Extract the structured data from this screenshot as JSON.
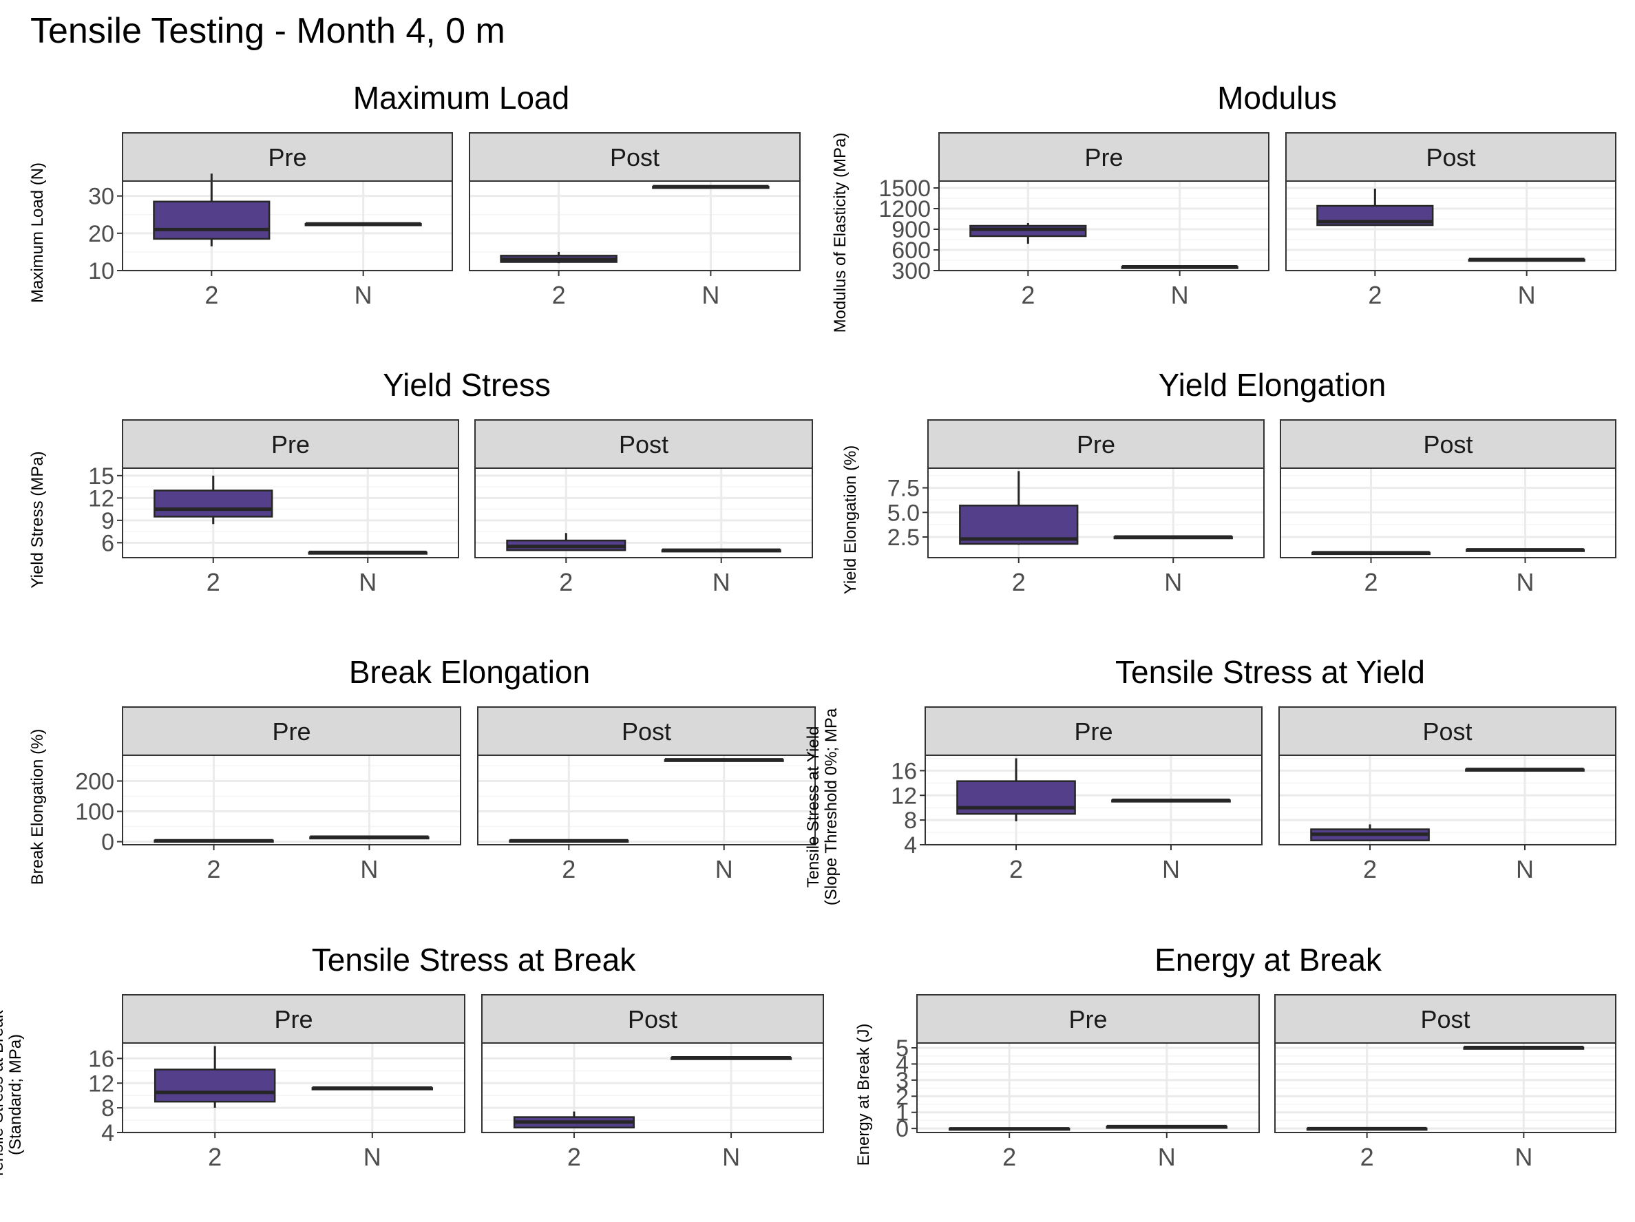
{
  "title": "Tensile Testing - Month 4, 0 m",
  "colors": {
    "box_fill": "#533f8a",
    "box_stroke": "#262626",
    "strip_fill": "#d9d9d9",
    "panel_border": "#333333",
    "grid_major": "#ebebeb",
    "grid_minor": "#f5f5f5"
  },
  "chart_data": [
    {
      "type": "boxplot",
      "title": "Maximum Load",
      "ylabel": [
        "Maximum Load (N)"
      ],
      "ylim": [
        10,
        34
      ],
      "yticks": [
        10,
        20,
        30
      ],
      "ytick_labels": [
        "10",
        "20",
        "30"
      ],
      "categories": [
        "2",
        "N"
      ],
      "facets": [
        {
          "name": "Pre",
          "boxes": [
            {
              "category": "2",
              "min": 16.5,
              "q1": 18.5,
              "median": 21,
              "q3": 28.5,
              "max": 36
            },
            {
              "category": "N",
              "min": 22.5,
              "q1": 22.5,
              "median": 22.5,
              "q3": 22.5,
              "max": 22.5
            }
          ]
        },
        {
          "name": "Post",
          "boxes": [
            {
              "category": "2",
              "min": 12,
              "q1": 12.3,
              "median": 13,
              "q3": 14,
              "max": 15
            },
            {
              "category": "N",
              "min": 32.5,
              "q1": 32.5,
              "median": 32.5,
              "q3": 32.5,
              "max": 32.5
            }
          ]
        }
      ]
    },
    {
      "type": "boxplot",
      "title": "Modulus",
      "ylabel": [
        "Modulus of Elasticity (MPa)"
      ],
      "ylim": [
        300,
        1600
      ],
      "yticks": [
        300,
        600,
        900,
        1200,
        1500
      ],
      "ytick_labels": [
        "300",
        "600",
        "900",
        "1200",
        "1500"
      ],
      "categories": [
        "2",
        "N"
      ],
      "facets": [
        {
          "name": "Pre",
          "boxes": [
            {
              "category": "2",
              "min": 690,
              "q1": 800,
              "median": 900,
              "q3": 950,
              "max": 990
            },
            {
              "category": "N",
              "min": 355,
              "q1": 355,
              "median": 355,
              "q3": 355,
              "max": 355
            }
          ]
        },
        {
          "name": "Post",
          "boxes": [
            {
              "category": "2",
              "min": 960,
              "q1": 960,
              "median": 1010,
              "q3": 1240,
              "max": 1490
            },
            {
              "category": "N",
              "min": 460,
              "q1": 460,
              "median": 460,
              "q3": 460,
              "max": 460
            }
          ]
        }
      ]
    },
    {
      "type": "boxplot",
      "title": "Yield Stress",
      "ylabel": [
        "Yield Stress (MPa)"
      ],
      "ylim": [
        4,
        16
      ],
      "yticks": [
        6,
        9,
        12,
        15
      ],
      "ytick_labels": [
        "6",
        "9",
        "12",
        "15"
      ],
      "categories": [
        "2",
        "N"
      ],
      "facets": [
        {
          "name": "Pre",
          "boxes": [
            {
              "category": "2",
              "min": 8.5,
              "q1": 9.5,
              "median": 10.5,
              "q3": 13,
              "max": 15
            },
            {
              "category": "N",
              "min": 4.7,
              "q1": 4.7,
              "median": 4.7,
              "q3": 4.7,
              "max": 4.7
            }
          ]
        },
        {
          "name": "Post",
          "boxes": [
            {
              "category": "2",
              "min": 5,
              "q1": 5,
              "median": 5.5,
              "q3": 6.3,
              "max": 7.3
            },
            {
              "category": "N",
              "min": 5,
              "q1": 5,
              "median": 5,
              "q3": 5,
              "max": 5
            }
          ]
        }
      ]
    },
    {
      "type": "boxplot",
      "title": "Yield Elongation",
      "ylabel": [
        "Yield Elongation (%)"
      ],
      "ylim": [
        0.4,
        9.5
      ],
      "yticks": [
        2.5,
        5.0,
        7.5
      ],
      "ytick_labels": [
        "2.5",
        "5.0",
        "7.5"
      ],
      "categories": [
        "2",
        "N"
      ],
      "facets": [
        {
          "name": "Pre",
          "boxes": [
            {
              "category": "2",
              "min": 1.7,
              "q1": 1.8,
              "median": 2.3,
              "q3": 5.7,
              "max": 9.2
            },
            {
              "category": "N",
              "min": 2.5,
              "q1": 2.5,
              "median": 2.5,
              "q3": 2.5,
              "max": 2.5
            }
          ]
        },
        {
          "name": "Post",
          "boxes": [
            {
              "category": "2",
              "min": 0.9,
              "q1": 0.9,
              "median": 0.9,
              "q3": 0.9,
              "max": 0.9
            },
            {
              "category": "N",
              "min": 1.2,
              "q1": 1.2,
              "median": 1.2,
              "q3": 1.2,
              "max": 1.2
            }
          ]
        }
      ]
    },
    {
      "type": "boxplot",
      "title": "Break Elongation",
      "ylabel": [
        "Break Elongation (%)"
      ],
      "ylim": [
        -10,
        285
      ],
      "yticks": [
        0,
        100,
        200
      ],
      "ytick_labels": [
        "0",
        "100",
        "200"
      ],
      "categories": [
        "2",
        "N"
      ],
      "facets": [
        {
          "name": "Pre",
          "boxes": [
            {
              "category": "2",
              "min": 2,
              "q1": 2,
              "median": 3,
              "q3": 4,
              "max": 5
            },
            {
              "category": "N",
              "min": 15,
              "q1": 15,
              "median": 15,
              "q3": 15,
              "max": 15
            }
          ]
        },
        {
          "name": "Post",
          "boxes": [
            {
              "category": "2",
              "min": 2,
              "q1": 2,
              "median": 3,
              "q3": 4,
              "max": 4
            },
            {
              "category": "N",
              "min": 270,
              "q1": 270,
              "median": 270,
              "q3": 270,
              "max": 270
            }
          ]
        }
      ]
    },
    {
      "type": "boxplot",
      "title": "Tensile Stress at Yield",
      "ylabel": [
        "Tensile Stress at Yield",
        "(Slope Threshold 0%; MPa"
      ],
      "ylim": [
        4,
        18.5
      ],
      "yticks": [
        4,
        8,
        12,
        16
      ],
      "ytick_labels": [
        "4",
        "8",
        "12",
        "16"
      ],
      "categories": [
        "2",
        "N"
      ],
      "facets": [
        {
          "name": "Pre",
          "boxes": [
            {
              "category": "2",
              "min": 7.8,
              "q1": 9,
              "median": 10,
              "q3": 14.3,
              "max": 18
            },
            {
              "category": "N",
              "min": 11.2,
              "q1": 11.2,
              "median": 11.2,
              "q3": 11.2,
              "max": 11.2
            }
          ]
        },
        {
          "name": "Post",
          "boxes": [
            {
              "category": "2",
              "min": 4.7,
              "q1": 4.7,
              "median": 5.7,
              "q3": 6.5,
              "max": 7.3
            },
            {
              "category": "N",
              "min": 16.2,
              "q1": 16.2,
              "median": 16.2,
              "q3": 16.2,
              "max": 16.2
            }
          ]
        }
      ]
    },
    {
      "type": "boxplot",
      "title": "Tensile Stress at Break",
      "ylabel": [
        "Tensile Stress at Break",
        "(Standard; MPa)"
      ],
      "ylim": [
        4,
        18.5
      ],
      "yticks": [
        4,
        8,
        12,
        16
      ],
      "ytick_labels": [
        "4",
        "8",
        "12",
        "16"
      ],
      "categories": [
        "2",
        "N"
      ],
      "facets": [
        {
          "name": "Pre",
          "boxes": [
            {
              "category": "2",
              "min": 8,
              "q1": 9,
              "median": 10.5,
              "q3": 14.2,
              "max": 18
            },
            {
              "category": "N",
              "min": 11.2,
              "q1": 11.2,
              "median": 11.2,
              "q3": 11.2,
              "max": 11.2
            }
          ]
        },
        {
          "name": "Post",
          "boxes": [
            {
              "category": "2",
              "min": 4.8,
              "q1": 4.8,
              "median": 5.7,
              "q3": 6.5,
              "max": 7.4
            },
            {
              "category": "N",
              "min": 16.1,
              "q1": 16.1,
              "median": 16.1,
              "q3": 16.1,
              "max": 16.1
            }
          ]
        }
      ]
    },
    {
      "type": "boxplot",
      "title": "Energy at Break",
      "ylabel": [
        "Energy at Break (J)"
      ],
      "ylim": [
        -0.25,
        5.3
      ],
      "yticks": [
        0,
        1,
        2,
        3,
        4,
        5
      ],
      "ytick_labels": [
        "0",
        "1",
        "2",
        "3",
        "4",
        "5"
      ],
      "categories": [
        "2",
        "N"
      ],
      "facets": [
        {
          "name": "Pre",
          "boxes": [
            {
              "category": "2",
              "min": -0.05,
              "q1": -0.05,
              "median": -0.02,
              "q3": 0,
              "max": 0.02
            },
            {
              "category": "N",
              "min": 0.12,
              "q1": 0.12,
              "median": 0.12,
              "q3": 0.12,
              "max": 0.12
            }
          ]
        },
        {
          "name": "Post",
          "boxes": [
            {
              "category": "2",
              "min": -0.02,
              "q1": -0.02,
              "median": -0.01,
              "q3": 0,
              "max": 0.01
            },
            {
              "category": "N",
              "min": 5.02,
              "q1": 5.02,
              "median": 5.02,
              "q3": 5.02,
              "max": 5.02
            }
          ]
        }
      ]
    }
  ]
}
